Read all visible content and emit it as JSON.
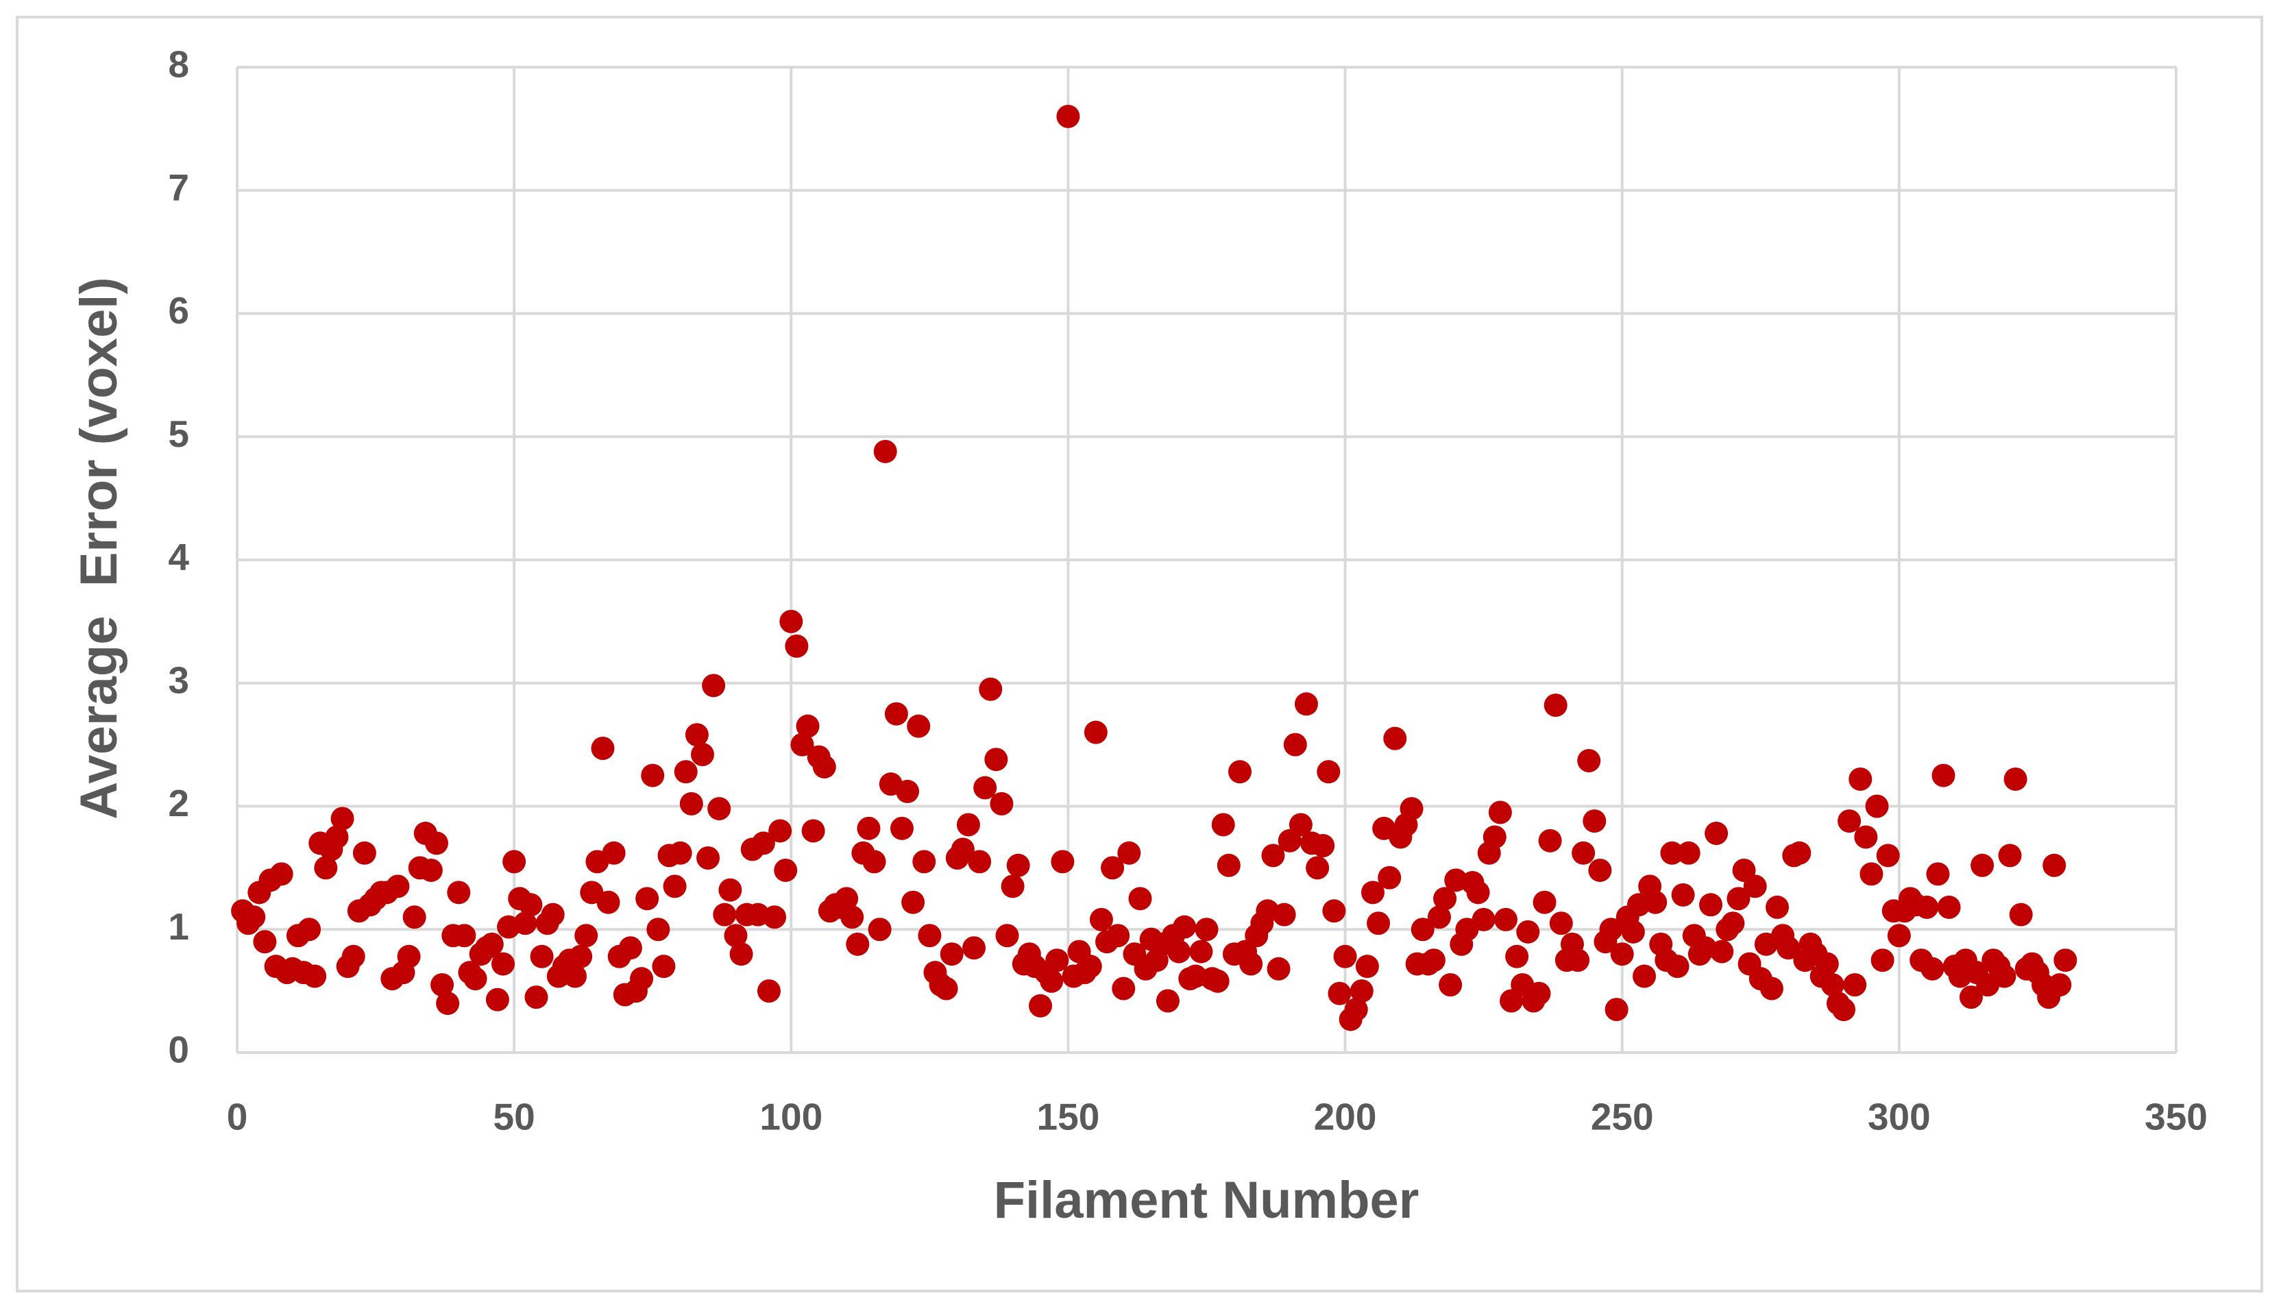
{
  "chart_data": {
    "type": "scatter",
    "x_label": "Filament Number",
    "y_label": "Average  Error (voxel)",
    "xlim": [
      0,
      350
    ],
    "xticks": [
      0,
      50,
      100,
      150,
      200,
      250,
      300,
      350
    ],
    "ylim": [
      0,
      8
    ],
    "yticks": [
      0,
      1,
      2,
      3,
      4,
      5,
      6,
      7,
      8
    ],
    "grid": true,
    "color": "#c00000",
    "x": [
      1,
      2,
      3,
      4,
      5,
      6,
      7,
      8,
      9,
      10,
      11,
      12,
      13,
      14,
      15,
      16,
      17,
      18,
      19,
      20,
      21,
      22,
      23,
      24,
      25,
      26,
      27,
      28,
      29,
      30,
      31,
      32,
      33,
      34,
      35,
      36,
      37,
      38,
      39,
      40,
      41,
      42,
      43,
      44,
      45,
      46,
      47,
      48,
      49,
      50,
      51,
      52,
      53,
      54,
      55,
      56,
      57,
      58,
      59,
      60,
      61,
      62,
      63,
      64,
      65,
      66,
      67,
      68,
      69,
      70,
      71,
      72,
      73,
      74,
      75,
      76,
      77,
      78,
      79,
      80,
      81,
      82,
      83,
      84,
      85,
      86,
      87,
      88,
      89,
      90,
      91,
      92,
      93,
      94,
      95,
      96,
      97,
      98,
      99,
      100,
      101,
      102,
      103,
      104,
      105,
      106,
      107,
      108,
      109,
      110,
      111,
      112,
      113,
      114,
      115,
      116,
      117,
      118,
      119,
      120,
      121,
      122,
      123,
      124,
      125,
      126,
      127,
      128,
      129,
      130,
      131,
      132,
      133,
      134,
      135,
      136,
      137,
      138,
      139,
      140,
      141,
      142,
      143,
      144,
      145,
      146,
      147,
      148,
      149,
      150,
      151,
      152,
      153,
      154,
      155,
      156,
      157,
      158,
      159,
      160,
      161,
      162,
      163,
      164,
      165,
      166,
      167,
      168,
      169,
      170,
      171,
      172,
      173,
      174,
      175,
      176,
      177,
      178,
      179,
      180,
      181,
      182,
      183,
      184,
      185,
      186,
      187,
      188,
      189,
      190,
      191,
      192,
      193,
      194,
      195,
      196,
      197,
      198,
      199,
      200,
      201,
      202,
      203,
      204,
      205,
      206,
      207,
      208,
      209,
      210,
      211,
      212,
      213,
      214,
      215,
      216,
      217,
      218,
      219,
      220,
      221,
      222,
      223,
      224,
      225,
      226,
      227,
      228,
      229,
      230,
      231,
      232,
      233,
      234,
      235,
      236,
      237,
      238,
      239,
      240,
      241,
      242,
      243,
      244,
      245,
      246,
      247,
      248,
      249,
      250,
      251,
      252,
      253,
      254,
      255,
      256,
      257,
      258,
      259,
      260,
      261,
      262,
      263,
      264,
      265,
      266,
      267,
      268,
      269,
      270,
      271,
      272,
      273,
      274,
      275,
      276,
      277,
      278,
      279,
      280,
      281,
      282,
      283,
      284,
      285,
      286,
      287,
      288,
      289,
      290,
      291,
      292,
      293,
      294,
      295,
      296,
      297,
      298,
      299,
      300,
      301,
      302,
      303,
      304,
      305,
      306,
      307,
      308,
      309,
      310,
      311,
      312,
      313,
      314,
      315,
      316,
      317,
      318,
      319,
      320,
      321,
      322,
      323,
      324,
      325,
      326,
      327,
      328,
      329,
      330
    ],
    "values": [
      1.15,
      1.05,
      1.1,
      1.3,
      0.9,
      1.4,
      0.7,
      1.45,
      0.65,
      0.68,
      0.95,
      0.65,
      1.0,
      0.62,
      1.7,
      1.5,
      1.65,
      1.75,
      1.9,
      0.7,
      0.78,
      1.15,
      1.62,
      1.2,
      1.25,
      1.3,
      1.3,
      0.6,
      1.35,
      0.65,
      0.78,
      1.1,
      1.5,
      1.78,
      1.48,
      1.7,
      0.55,
      0.4,
      0.95,
      1.3,
      0.95,
      0.65,
      0.6,
      0.8,
      0.85,
      0.88,
      0.43,
      0.72,
      1.02,
      1.55,
      1.25,
      1.05,
      1.2,
      0.45,
      0.78,
      1.05,
      1.12,
      0.62,
      0.7,
      0.75,
      0.62,
      0.78,
      0.95,
      1.3,
      1.55,
      2.47,
      1.22,
      1.62,
      0.78,
      0.47,
      0.85,
      0.5,
      0.6,
      1.25,
      2.25,
      1.0,
      0.7,
      1.6,
      1.35,
      1.62,
      2.28,
      2.02,
      2.58,
      2.42,
      1.58,
      2.98,
      1.98,
      1.12,
      1.32,
      0.95,
      0.8,
      1.12,
      1.65,
      1.12,
      1.7,
      0.5,
      1.1,
      1.8,
      1.48,
      3.5,
      3.3,
      2.5,
      2.65,
      1.8,
      2.4,
      2.32,
      1.15,
      1.2,
      1.18,
      1.25,
      1.1,
      0.88,
      1.62,
      1.82,
      1.55,
      1.0,
      4.88,
      2.18,
      2.75,
      1.82,
      2.12,
      1.22,
      2.65,
      1.55,
      0.95,
      0.65,
      0.55,
      0.52,
      0.8,
      1.58,
      1.65,
      1.85,
      0.85,
      1.55,
      2.15,
      2.95,
      2.38,
      2.02,
      0.95,
      1.35,
      1.52,
      0.72,
      0.8,
      0.7,
      0.38,
      0.65,
      0.58,
      0.75,
      1.55,
      7.6,
      0.62,
      0.82,
      0.65,
      0.7,
      2.6,
      1.08,
      0.9,
      1.5,
      0.95,
      0.52,
      1.62,
      0.8,
      1.25,
      0.68,
      0.92,
      0.75,
      0.88,
      0.42,
      0.95,
      0.82,
      1.02,
      0.6,
      0.62,
      0.82,
      1.0,
      0.6,
      0.58,
      1.85,
      1.52,
      0.8,
      2.28,
      0.82,
      0.72,
      0.95,
      1.05,
      1.15,
      1.6,
      0.68,
      1.12,
      1.72,
      2.5,
      1.85,
      2.83,
      1.7,
      1.5,
      1.68,
      2.28,
      1.15,
      0.48,
      0.78,
      0.27,
      0.35,
      0.5,
      0.7,
      1.3,
      1.05,
      1.82,
      1.42,
      2.55,
      1.75,
      1.85,
      1.98,
      0.72,
      1.0,
      0.72,
      0.75,
      1.1,
      1.25,
      0.55,
      1.4,
      0.88,
      1.0,
      1.38,
      1.3,
      1.08,
      1.62,
      1.75,
      1.95,
      1.08,
      0.42,
      0.78,
      0.55,
      0.98,
      0.42,
      0.48,
      1.22,
      1.72,
      2.82,
      1.05,
      0.75,
      0.88,
      0.75,
      1.62,
      2.37,
      1.88,
      1.48,
      0.9,
      1.0,
      0.35,
      0.8,
      1.1,
      0.98,
      1.2,
      0.62,
      1.35,
      1.22,
      0.88,
      0.75,
      1.62,
      0.7,
      1.28,
      1.62,
      0.95,
      0.8,
      0.85,
      1.2,
      1.78,
      0.82,
      1.0,
      1.05,
      1.25,
      1.48,
      0.72,
      1.35,
      0.6,
      0.88,
      0.52,
      1.18,
      0.95,
      0.85,
      1.6,
      1.62,
      0.75,
      0.88,
      0.8,
      0.62,
      0.72,
      0.55,
      0.4,
      0.35,
      1.88,
      0.55,
      2.22,
      1.75,
      1.45,
      2.0,
      0.75,
      1.6,
      1.15,
      0.95,
      1.15,
      1.25,
      1.2,
      0.75,
      1.18,
      0.68,
      1.45,
      2.25,
      1.18,
      0.7,
      0.62,
      0.75,
      0.45,
      0.65,
      1.52,
      0.55,
      0.75,
      0.7,
      0.62,
      1.6,
      2.22,
      1.12,
      0.68,
      0.72,
      0.65,
      0.55,
      0.45,
      1.52,
      0.55,
      0.75
    ]
  }
}
